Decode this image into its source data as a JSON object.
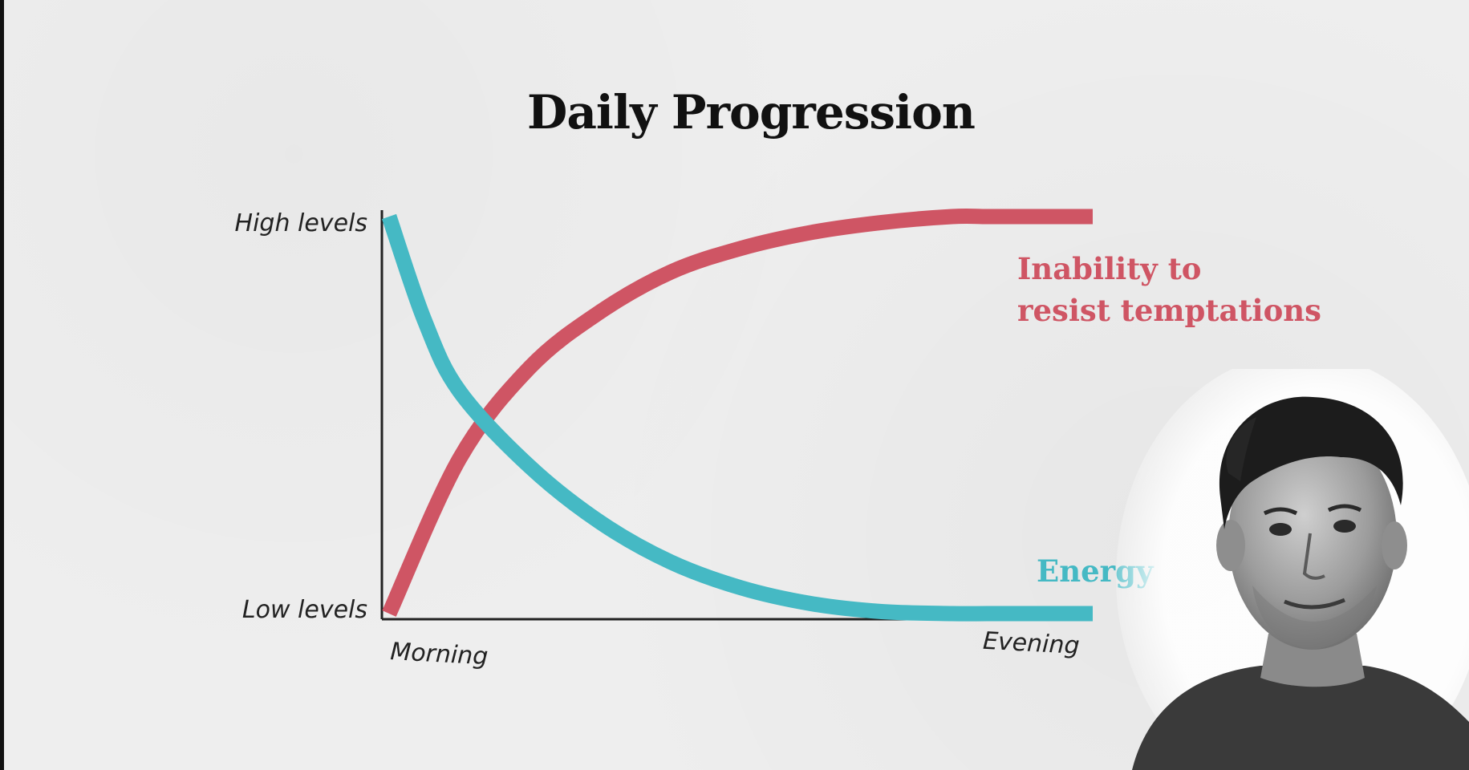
{
  "title": "Daily Progression",
  "chart_data": {
    "type": "line",
    "title": "Daily Progression",
    "x_tick_labels": [
      "Morning",
      "Evening"
    ],
    "y_tick_labels": [
      "Low levels",
      "High levels"
    ],
    "xlim": [
      0,
      1
    ],
    "ylim": [
      0,
      1
    ],
    "series": [
      {
        "name": "Inability to resist temptations",
        "color": "#cf5564",
        "x": [
          0,
          0.1,
          0.2,
          0.3,
          0.4,
          0.5,
          0.6,
          0.7,
          0.8,
          0.85,
          0.9,
          1.0
        ],
        "y": [
          0.0,
          0.39,
          0.62,
          0.76,
          0.86,
          0.92,
          0.96,
          0.985,
          1.0,
          1.0,
          1.0,
          1.0
        ]
      },
      {
        "name": "Energy",
        "color": "#45b9c4",
        "x": [
          0,
          0.05,
          0.1,
          0.2,
          0.3,
          0.4,
          0.5,
          0.6,
          0.7,
          0.8,
          0.85,
          0.9,
          1.0
        ],
        "y": [
          1.0,
          0.74,
          0.56,
          0.37,
          0.23,
          0.13,
          0.065,
          0.025,
          0.005,
          0.0,
          0.0,
          0.0,
          0.0
        ]
      }
    ],
    "grid": false,
    "legend": "direct labels at right"
  },
  "speaker_image": "speaker-photo"
}
